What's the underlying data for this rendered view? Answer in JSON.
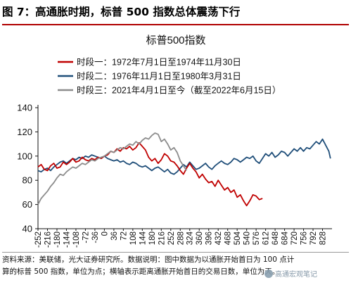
{
  "figure": {
    "title": "图 7：高通胀时期，标普 500 指数总体震荡下行",
    "footer_line1": "资料来源：美联储，光大证券研究所。数据说明：图中数据为以通胀开始首日为 100 点计",
    "footer_line2": "算的标普 500 指数，单位为点；横轴表示距离通胀开始首日的交易日数，单位为天。",
    "watermark": "高通宏观笔记"
  },
  "chart_data": {
    "type": "line",
    "title": "标普500指数",
    "xlabel": "",
    "ylabel": "",
    "ylim": [
      40,
      140
    ],
    "yticks": [
      40,
      60,
      80,
      100,
      120,
      140
    ],
    "xlim": [
      -252,
      864
    ],
    "xticks": [
      -252,
      -216,
      -180,
      -144,
      -108,
      -72,
      -36,
      0,
      36,
      72,
      108,
      144,
      180,
      216,
      252,
      288,
      324,
      360,
      396,
      432,
      468,
      504,
      540,
      576,
      612,
      648,
      684,
      720,
      756,
      792,
      828
    ],
    "grid": false,
    "legend_position": "top-left",
    "series": [
      {
        "name": "时段一：1972年7月1日至1974年11月30日",
        "color": "#c00000",
        "points": [
          [
            -252,
            91
          ],
          [
            -240,
            93
          ],
          [
            -228,
            89
          ],
          [
            -216,
            88
          ],
          [
            -204,
            92
          ],
          [
            -192,
            94
          ],
          [
            -180,
            90
          ],
          [
            -168,
            91
          ],
          [
            -156,
            95
          ],
          [
            -144,
            93
          ],
          [
            -132,
            95
          ],
          [
            -120,
            98
          ],
          [
            -108,
            95
          ],
          [
            -96,
            96
          ],
          [
            -84,
            99
          ],
          [
            -72,
            97
          ],
          [
            -60,
            96
          ],
          [
            -48,
            98
          ],
          [
            -36,
            97
          ],
          [
            -24,
            99
          ],
          [
            -12,
            98
          ],
          [
            0,
            100
          ],
          [
            12,
            101
          ],
          [
            24,
            104
          ],
          [
            36,
            103
          ],
          [
            48,
            106
          ],
          [
            60,
            104
          ],
          [
            72,
            107
          ],
          [
            84,
            106
          ],
          [
            96,
            108
          ],
          [
            108,
            105
          ],
          [
            120,
            107
          ],
          [
            132,
            111
          ],
          [
            144,
            108
          ],
          [
            156,
            105
          ],
          [
            168,
            99
          ],
          [
            180,
            96
          ],
          [
            192,
            98
          ],
          [
            204,
            94
          ],
          [
            216,
            97
          ],
          [
            228,
            102
          ],
          [
            240,
            100
          ],
          [
            252,
            96
          ],
          [
            264,
            95
          ],
          [
            276,
            92
          ],
          [
            288,
            88
          ],
          [
            300,
            85
          ],
          [
            312,
            90
          ],
          [
            324,
            94
          ],
          [
            336,
            90
          ],
          [
            348,
            87
          ],
          [
            360,
            82
          ],
          [
            372,
            85
          ],
          [
            384,
            81
          ],
          [
            396,
            78
          ],
          [
            408,
            79
          ],
          [
            420,
            75
          ],
          [
            432,
            80
          ],
          [
            444,
            76
          ],
          [
            456,
            72
          ],
          [
            468,
            74
          ],
          [
            480,
            70
          ],
          [
            492,
            72
          ],
          [
            504,
            66
          ],
          [
            516,
            68
          ],
          [
            528,
            63
          ],
          [
            540,
            59
          ],
          [
            552,
            63
          ],
          [
            564,
            68
          ],
          [
            576,
            67
          ],
          [
            588,
            64
          ],
          [
            600,
            65
          ]
        ]
      },
      {
        "name": "时段二：1976年11月1日至1980年3月31日",
        "color": "#1f4e79",
        "points": [
          [
            -252,
            88
          ],
          [
            -240,
            87
          ],
          [
            -228,
            89
          ],
          [
            -216,
            90
          ],
          [
            -204,
            88
          ],
          [
            -192,
            91
          ],
          [
            -180,
            93
          ],
          [
            -168,
            95
          ],
          [
            -156,
            96
          ],
          [
            -144,
            94
          ],
          [
            -132,
            96
          ],
          [
            -120,
            98
          ],
          [
            -108,
            97
          ],
          [
            -96,
            99
          ],
          [
            -84,
            98
          ],
          [
            -72,
            100
          ],
          [
            -60,
            99
          ],
          [
            -48,
            101
          ],
          [
            -36,
            100
          ],
          [
            -24,
            99
          ],
          [
            -12,
            98
          ],
          [
            0,
            100
          ],
          [
            12,
            98
          ],
          [
            24,
            97
          ],
          [
            36,
            96
          ],
          [
            48,
            97
          ],
          [
            60,
            95
          ],
          [
            72,
            96
          ],
          [
            84,
            94
          ],
          [
            96,
            93
          ],
          [
            108,
            95
          ],
          [
            120,
            94
          ],
          [
            132,
            92
          ],
          [
            144,
            91
          ],
          [
            156,
            92
          ],
          [
            168,
            90
          ],
          [
            180,
            88
          ],
          [
            192,
            90
          ],
          [
            204,
            91
          ],
          [
            216,
            89
          ],
          [
            228,
            87
          ],
          [
            240,
            89
          ],
          [
            252,
            86
          ],
          [
            264,
            85
          ],
          [
            276,
            87
          ],
          [
            288,
            90
          ],
          [
            300,
            93
          ],
          [
            312,
            91
          ],
          [
            324,
            95
          ],
          [
            336,
            92
          ],
          [
            348,
            89
          ],
          [
            360,
            90
          ],
          [
            372,
            92
          ],
          [
            384,
            94
          ],
          [
            396,
            91
          ],
          [
            408,
            89
          ],
          [
            420,
            92
          ],
          [
            432,
            94
          ],
          [
            444,
            96
          ],
          [
            456,
            94
          ],
          [
            468,
            93
          ],
          [
            480,
            95
          ],
          [
            492,
            98
          ],
          [
            504,
            97
          ],
          [
            516,
            95
          ],
          [
            528,
            97
          ],
          [
            540,
            99
          ],
          [
            552,
            98
          ],
          [
            564,
            100
          ],
          [
            576,
            96
          ],
          [
            588,
            94
          ],
          [
            600,
            98
          ],
          [
            612,
            102
          ],
          [
            624,
            100
          ],
          [
            636,
            103
          ],
          [
            648,
            99
          ],
          [
            660,
            101
          ],
          [
            672,
            104
          ],
          [
            684,
            103
          ],
          [
            696,
            100
          ],
          [
            708,
            103
          ],
          [
            720,
            106
          ],
          [
            732,
            104
          ],
          [
            744,
            107
          ],
          [
            756,
            104
          ],
          [
            768,
            107
          ],
          [
            780,
            106
          ],
          [
            792,
            109
          ],
          [
            804,
            112
          ],
          [
            816,
            110
          ],
          [
            828,
            114
          ],
          [
            840,
            109
          ],
          [
            852,
            104
          ],
          [
            858,
            98
          ]
        ]
      },
      {
        "name": "时段三：2021年4月1日至今（截至2022年6月15日）",
        "color": "#8c8c8c",
        "points": [
          [
            -252,
            60
          ],
          [
            -240,
            65
          ],
          [
            -228,
            68
          ],
          [
            -216,
            71
          ],
          [
            -204,
            75
          ],
          [
            -192,
            78
          ],
          [
            -180,
            82
          ],
          [
            -168,
            85
          ],
          [
            -156,
            84
          ],
          [
            -144,
            87
          ],
          [
            -132,
            89
          ],
          [
            -120,
            91
          ],
          [
            -108,
            90
          ],
          [
            -96,
            92
          ],
          [
            -84,
            94
          ],
          [
            -72,
            93
          ],
          [
            -60,
            95
          ],
          [
            -48,
            97
          ],
          [
            -36,
            96
          ],
          [
            -24,
            98
          ],
          [
            -12,
            99
          ],
          [
            0,
            100
          ],
          [
            12,
            102
          ],
          [
            24,
            104
          ],
          [
            36,
            103
          ],
          [
            48,
            105
          ],
          [
            60,
            107
          ],
          [
            72,
            106
          ],
          [
            84,
            108
          ],
          [
            96,
            110
          ],
          [
            108,
            109
          ],
          [
            120,
            112
          ],
          [
            132,
            110
          ],
          [
            144,
            113
          ],
          [
            156,
            115
          ],
          [
            168,
            114
          ],
          [
            180,
            117
          ],
          [
            192,
            119
          ],
          [
            204,
            118
          ],
          [
            216,
            112
          ],
          [
            228,
            114
          ],
          [
            240,
            110
          ],
          [
            252,
            105
          ],
          [
            264,
            107
          ],
          [
            276,
            103
          ],
          [
            288,
            96
          ],
          [
            300,
            92
          ],
          [
            312,
            88
          ]
        ]
      }
    ]
  }
}
